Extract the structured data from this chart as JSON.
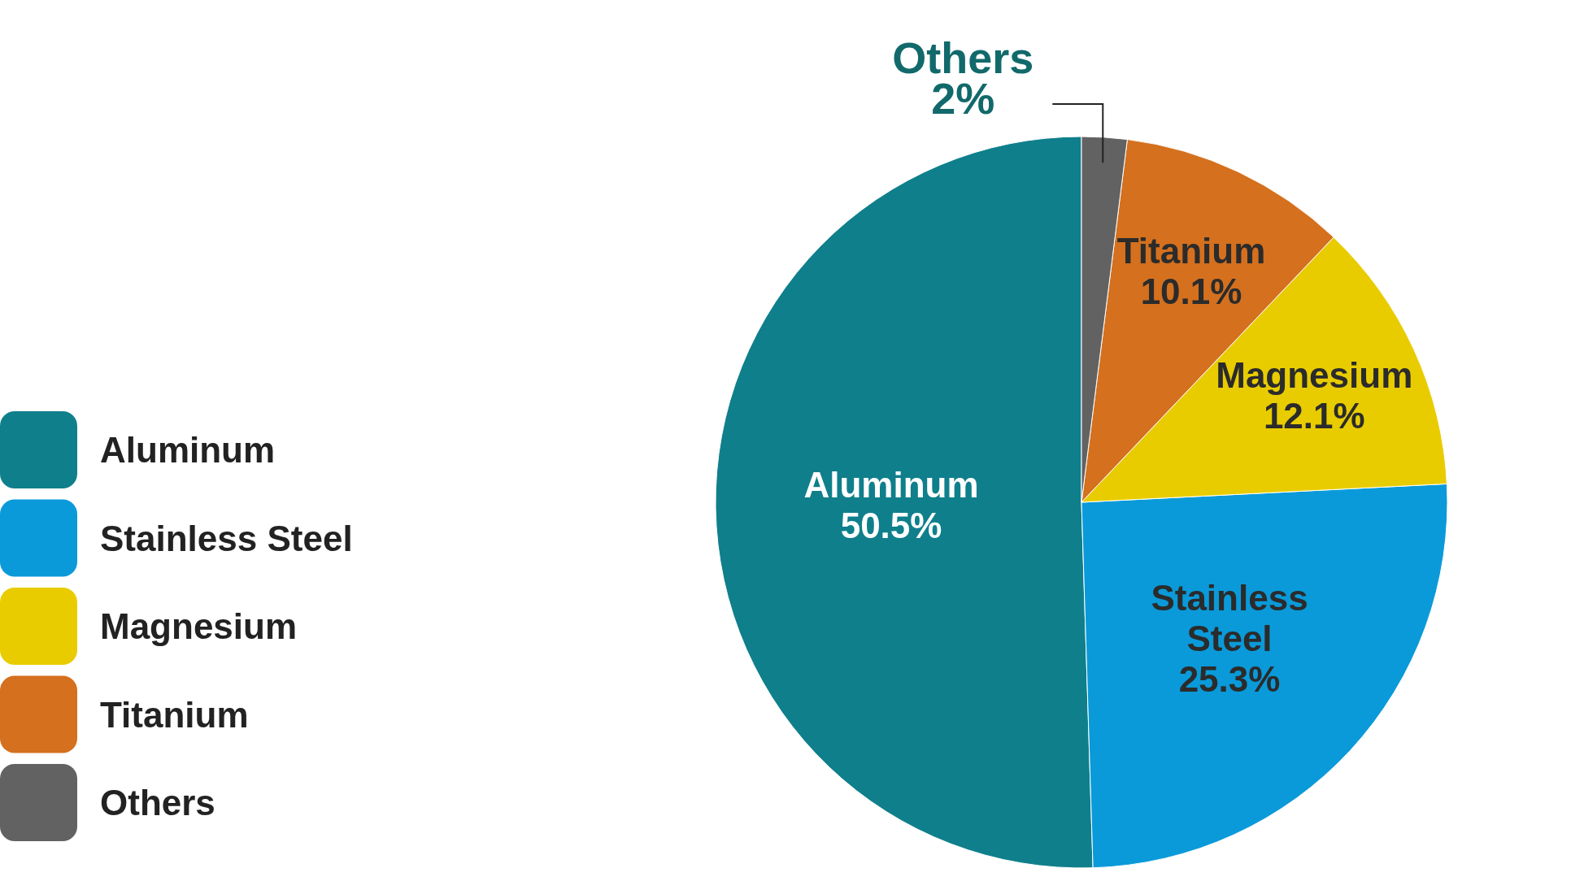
{
  "chart_data": {
    "type": "pie",
    "categories": [
      "Aluminum",
      "Stainless Steel",
      "Magnesium",
      "Titanium",
      "Others"
    ],
    "values": [
      50.5,
      25.3,
      12.1,
      10.1,
      2
    ],
    "colors": [
      "#0f7f8c",
      "#0a9ad9",
      "#e8cc00",
      "#d4701e",
      "#626262"
    ],
    "value_labels": [
      "50.5%",
      "25.3%",
      "12.1%",
      "10.1%",
      "2%"
    ],
    "legend": "left"
  }
}
